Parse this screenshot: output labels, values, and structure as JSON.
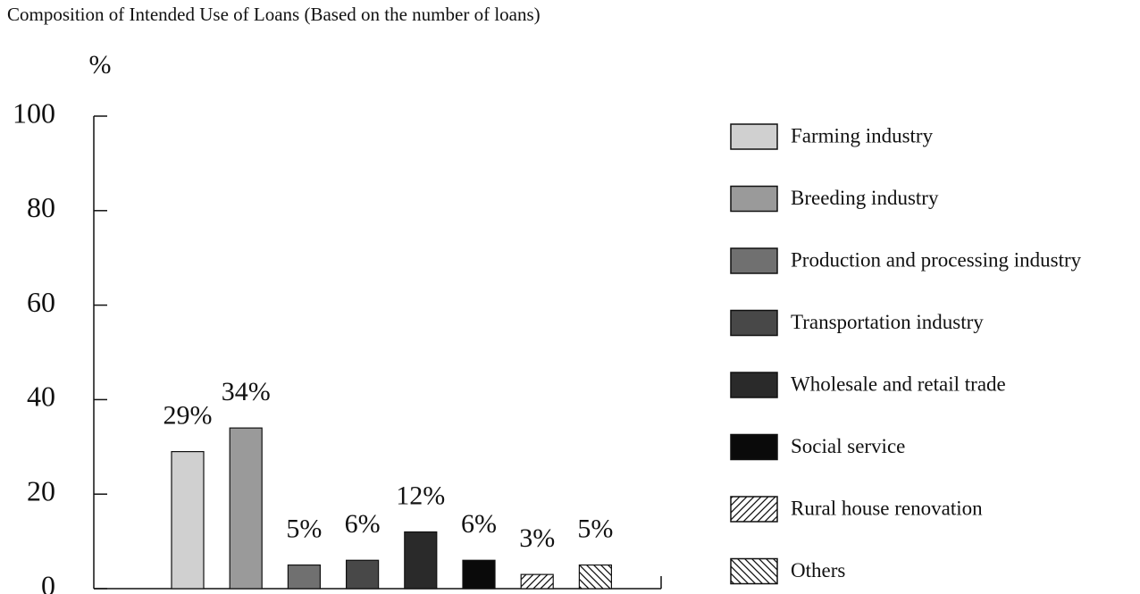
{
  "chart_data": {
    "type": "bar",
    "title": "Composition of Intended Use of Loans (Based on the number of loans)",
    "ylabel": "%",
    "categories": [
      "Farming industry",
      "Breeding industry",
      "Production and processing industry",
      "Transportation industry",
      "Wholesale and retail trade",
      "Social service",
      "Rural house renovation",
      "Others"
    ],
    "values": [
      29,
      34,
      5,
      6,
      12,
      6,
      3,
      5
    ],
    "value_labels": [
      "29%",
      "34%",
      "5%",
      "6%",
      "12%",
      "6%",
      "3%",
      "5%"
    ],
    "colors": [
      "#d0d0d0",
      "#9a9a9a",
      "#707070",
      "#484848",
      "#2a2a2a",
      "#0a0a0a",
      "hatch-right",
      "hatch-left"
    ],
    "ylim": [
      0,
      100
    ],
    "yticks": [
      0,
      20,
      40,
      60,
      80,
      100
    ],
    "legend": "right"
  }
}
